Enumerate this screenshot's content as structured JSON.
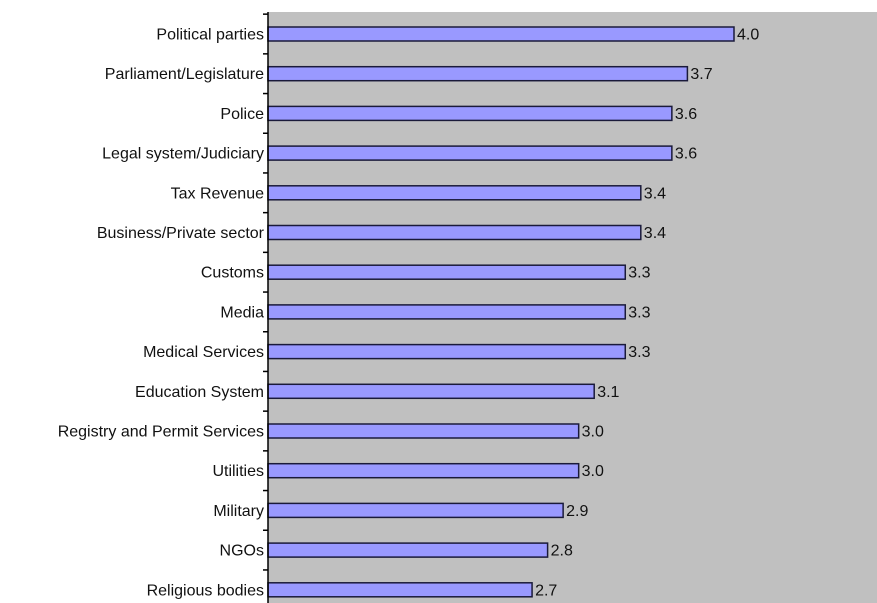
{
  "chart_data": {
    "type": "bar",
    "orientation": "horizontal",
    "categories": [
      "Political parties",
      "Parliament/Legislature",
      "Police",
      "Legal system/Judiciary",
      "Tax Revenue",
      "Business/Private sector",
      "Customs",
      "Media",
      "Medical Services",
      "Education System",
      "Registry and Permit Services",
      "Utilities",
      "Military",
      "NGOs",
      "Religious bodies"
    ],
    "values": [
      4.0,
      3.7,
      3.6,
      3.6,
      3.4,
      3.4,
      3.3,
      3.3,
      3.3,
      3.1,
      3.0,
      3.0,
      2.9,
      2.8,
      2.7
    ],
    "value_labels": [
      "4.0",
      "3.7",
      "3.6",
      "3.6",
      "3.4",
      "3.4",
      "3.3",
      "3.3",
      "3.3",
      "3.1",
      "3.0",
      "3.0",
      "2.9",
      "2.8",
      "2.7"
    ],
    "title": "",
    "xlabel": "",
    "ylabel": "",
    "xlim": [
      1.0,
      4.9
    ],
    "grid": false,
    "legend": "none",
    "colors": {
      "bar_fill": "#9999ff",
      "bar_stroke": "#1a1a3a",
      "plot_background": "#c0c0c0",
      "axis": "#000000"
    }
  }
}
